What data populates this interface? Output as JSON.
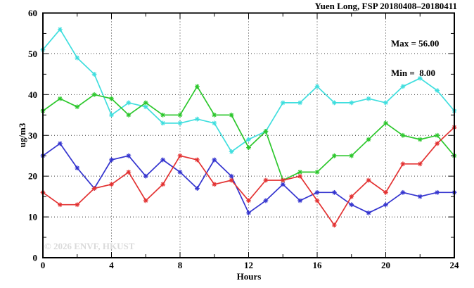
{
  "watermark": "© 2026 ENVF, HKUST",
  "chart_data": {
    "type": "line",
    "title": "Yuen Long, FSP 20180408–20180411",
    "xlabel": "Hours",
    "ylabel": "ug/m3",
    "xlim": [
      0,
      24
    ],
    "ylim": [
      0,
      60
    ],
    "x_major_ticks": [
      0,
      4,
      8,
      12,
      16,
      20,
      24
    ],
    "x_minor_step": 2,
    "y_major_ticks": [
      0,
      10,
      20,
      30,
      40,
      50,
      60
    ],
    "y_minor_step": 5,
    "x_gridlines": [
      4,
      8,
      12,
      16,
      20
    ],
    "y_gridlines": [
      10,
      20,
      30,
      40,
      50
    ],
    "grid": true,
    "legend_position": "top-right-inside",
    "legend": {
      "max_label": "Max = 56.00",
      "min_label": "Min =  8.00"
    },
    "stats": {
      "max": 56.0,
      "min": 8.0
    },
    "x": [
      0,
      1,
      2,
      3,
      4,
      5,
      6,
      7,
      8,
      9,
      10,
      11,
      12,
      13,
      14,
      15,
      16,
      17,
      18,
      19,
      20,
      21,
      22,
      23,
      24
    ],
    "series": [
      {
        "name": "cyan",
        "color": "#3fdede",
        "values": [
          51,
          56,
          49,
          45,
          35,
          38,
          37,
          33,
          33,
          34,
          33,
          26,
          29,
          31,
          38,
          38,
          42,
          38,
          38,
          39,
          38,
          42,
          44,
          41,
          36
        ]
      },
      {
        "name": "green",
        "color": "#2cc72c",
        "values": [
          36,
          39,
          37,
          40,
          39,
          35,
          38,
          35,
          35,
          42,
          35,
          35,
          27,
          31,
          19,
          21,
          21,
          25,
          25,
          29,
          33,
          30,
          29,
          30,
          25
        ]
      },
      {
        "name": "blue",
        "color": "#3434cf",
        "values": [
          25,
          28,
          22,
          17,
          24,
          25,
          20,
          24,
          21,
          17,
          24,
          20,
          11,
          14,
          18,
          14,
          16,
          16,
          13,
          11,
          13,
          16,
          15,
          16,
          16
        ]
      },
      {
        "name": "red",
        "color": "#e33232",
        "values": [
          16,
          13,
          13,
          17,
          18,
          21,
          14,
          18,
          25,
          24,
          18,
          19,
          14,
          19,
          19,
          20,
          14,
          8,
          15,
          19,
          16,
          23,
          23,
          28,
          32
        ]
      }
    ]
  }
}
